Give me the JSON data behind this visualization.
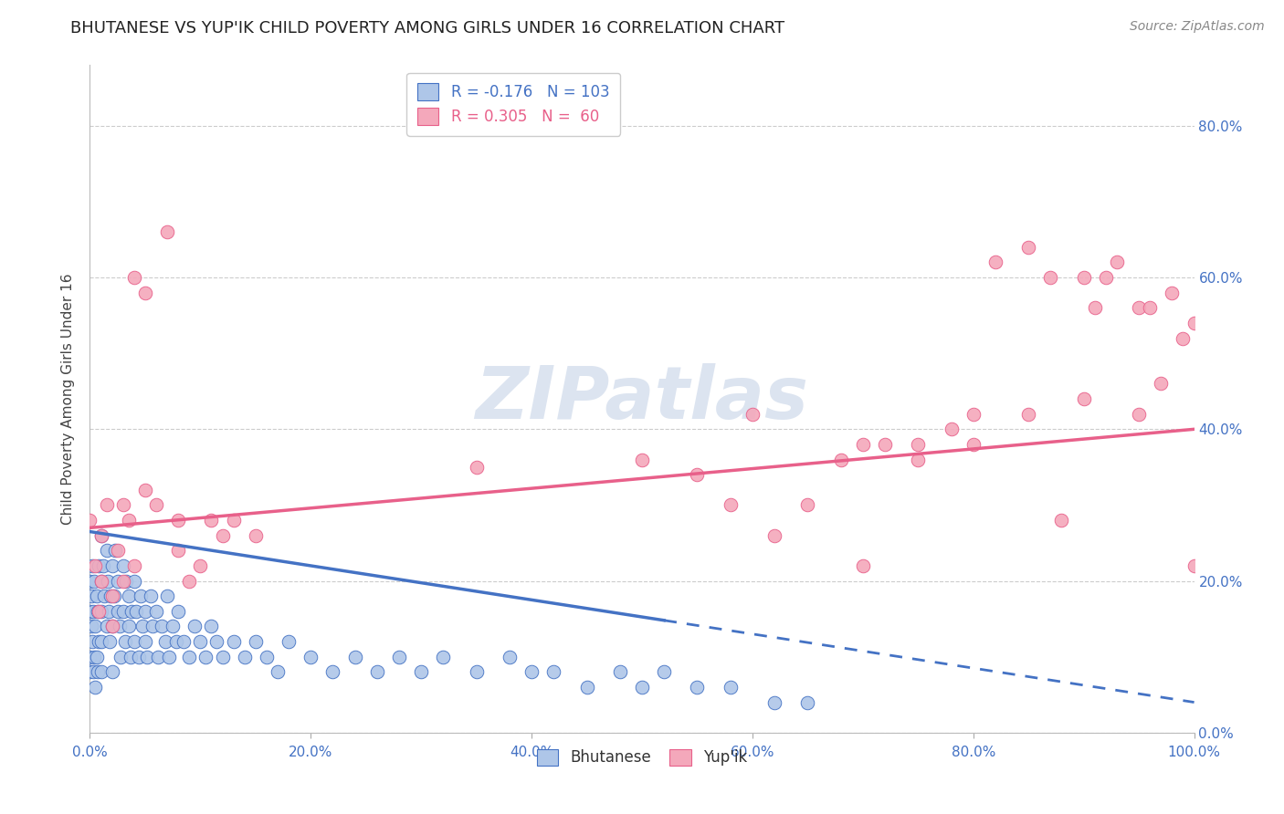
{
  "title": "BHUTANESE VS YUP'IK CHILD POVERTY AMONG GIRLS UNDER 16 CORRELATION CHART",
  "source": "Source: ZipAtlas.com",
  "ylabel": "Child Poverty Among Girls Under 16",
  "r_bhutanese": -0.176,
  "n_bhutanese": 103,
  "r_yupik": 0.305,
  "n_yupik": 60,
  "blue_color": "#4472c4",
  "pink_color": "#e8608a",
  "scatter_blue": "#aec6e8",
  "scatter_pink": "#f4a8bb",
  "watermark": "ZIPatlas",
  "bg_color": "#ffffff",
  "grid_color": "#cccccc",
  "watermark_color": "#dce4f0",
  "xlim": [
    0.0,
    1.0
  ],
  "ylim": [
    0.0,
    0.88
  ],
  "blue_line_solid_end": 0.52,
  "blue_line_start_y": 0.265,
  "blue_line_end_y": 0.04,
  "pink_line_start_y": 0.27,
  "pink_line_end_y": 0.4,
  "bhutanese_x": [
    0.0,
    0.0,
    0.0,
    0.0,
    0.001,
    0.001,
    0.002,
    0.002,
    0.003,
    0.003,
    0.004,
    0.004,
    0.005,
    0.005,
    0.006,
    0.006,
    0.007,
    0.007,
    0.008,
    0.008,
    0.01,
    0.01,
    0.01,
    0.01,
    0.01,
    0.012,
    0.013,
    0.015,
    0.015,
    0.016,
    0.017,
    0.018,
    0.019,
    0.02,
    0.02,
    0.02,
    0.022,
    0.023,
    0.025,
    0.025,
    0.027,
    0.028,
    0.03,
    0.03,
    0.032,
    0.033,
    0.035,
    0.035,
    0.037,
    0.038,
    0.04,
    0.04,
    0.042,
    0.044,
    0.046,
    0.048,
    0.05,
    0.05,
    0.052,
    0.055,
    0.057,
    0.06,
    0.062,
    0.065,
    0.068,
    0.07,
    0.072,
    0.075,
    0.078,
    0.08,
    0.085,
    0.09,
    0.095,
    0.1,
    0.105,
    0.11,
    0.115,
    0.12,
    0.13,
    0.14,
    0.15,
    0.16,
    0.17,
    0.18,
    0.2,
    0.22,
    0.24,
    0.26,
    0.28,
    0.3,
    0.32,
    0.35,
    0.38,
    0.4,
    0.42,
    0.45,
    0.48,
    0.5,
    0.52,
    0.55,
    0.58,
    0.62,
    0.65
  ],
  "bhutanese_y": [
    0.16,
    0.2,
    0.1,
    0.08,
    0.14,
    0.18,
    0.12,
    0.22,
    0.08,
    0.16,
    0.1,
    0.2,
    0.06,
    0.14,
    0.1,
    0.18,
    0.08,
    0.16,
    0.12,
    0.22,
    0.26,
    0.2,
    0.16,
    0.12,
    0.08,
    0.22,
    0.18,
    0.24,
    0.14,
    0.2,
    0.16,
    0.12,
    0.18,
    0.14,
    0.22,
    0.08,
    0.18,
    0.24,
    0.16,
    0.2,
    0.14,
    0.1,
    0.22,
    0.16,
    0.12,
    0.2,
    0.14,
    0.18,
    0.1,
    0.16,
    0.2,
    0.12,
    0.16,
    0.1,
    0.18,
    0.14,
    0.16,
    0.12,
    0.1,
    0.18,
    0.14,
    0.16,
    0.1,
    0.14,
    0.12,
    0.18,
    0.1,
    0.14,
    0.12,
    0.16,
    0.12,
    0.1,
    0.14,
    0.12,
    0.1,
    0.14,
    0.12,
    0.1,
    0.12,
    0.1,
    0.12,
    0.1,
    0.08,
    0.12,
    0.1,
    0.08,
    0.1,
    0.08,
    0.1,
    0.08,
    0.1,
    0.08,
    0.1,
    0.08,
    0.08,
    0.06,
    0.08,
    0.06,
    0.08,
    0.06,
    0.06,
    0.04,
    0.04
  ],
  "yupik_x": [
    0.0,
    0.005,
    0.008,
    0.01,
    0.01,
    0.015,
    0.02,
    0.02,
    0.025,
    0.03,
    0.03,
    0.035,
    0.04,
    0.04,
    0.05,
    0.05,
    0.06,
    0.07,
    0.08,
    0.08,
    0.09,
    0.1,
    0.11,
    0.12,
    0.13,
    0.15,
    0.35,
    0.5,
    0.6,
    0.62,
    0.65,
    0.68,
    0.7,
    0.72,
    0.75,
    0.78,
    0.8,
    0.82,
    0.85,
    0.87,
    0.88,
    0.9,
    0.91,
    0.92,
    0.93,
    0.95,
    0.95,
    0.96,
    0.97,
    0.98,
    0.99,
    1.0,
    1.0,
    0.55,
    0.58,
    0.7,
    0.75,
    0.8,
    0.85,
    0.9
  ],
  "yupik_y": [
    0.28,
    0.22,
    0.16,
    0.26,
    0.2,
    0.3,
    0.18,
    0.14,
    0.24,
    0.2,
    0.3,
    0.28,
    0.22,
    0.6,
    0.32,
    0.58,
    0.3,
    0.66,
    0.24,
    0.28,
    0.2,
    0.22,
    0.28,
    0.26,
    0.28,
    0.26,
    0.35,
    0.36,
    0.42,
    0.26,
    0.3,
    0.36,
    0.22,
    0.38,
    0.36,
    0.4,
    0.42,
    0.62,
    0.42,
    0.6,
    0.28,
    0.6,
    0.56,
    0.6,
    0.62,
    0.42,
    0.56,
    0.56,
    0.46,
    0.58,
    0.52,
    0.54,
    0.22,
    0.34,
    0.3,
    0.38,
    0.38,
    0.38,
    0.64,
    0.44
  ]
}
